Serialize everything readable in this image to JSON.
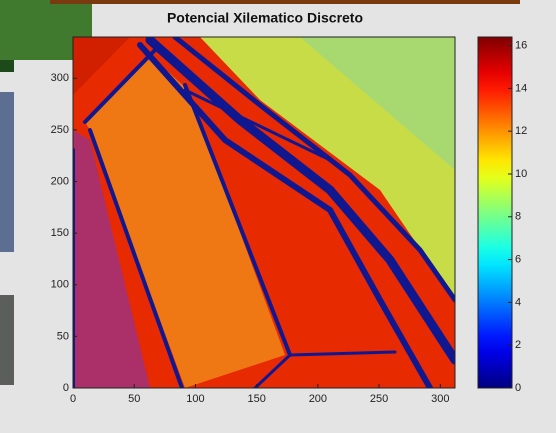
{
  "chart_data": {
    "type": "image",
    "title": "Potencial Xilematico Discreto",
    "xlim": [
      0,
      312
    ],
    "xticks": [
      0,
      50,
      100,
      150,
      200,
      250,
      300
    ],
    "ylim": [
      0,
      340
    ],
    "yticks": [
      0,
      50,
      100,
      150,
      200,
      250,
      300
    ],
    "colormap": "jet",
    "clim": [
      0,
      16.4
    ],
    "cticks": [
      0,
      2,
      4,
      6,
      8,
      10,
      12,
      14,
      16
    ]
  }
}
